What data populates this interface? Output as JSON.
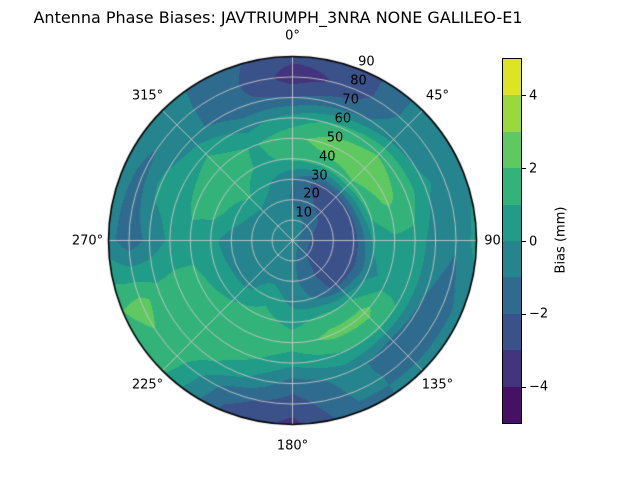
{
  "chart_data": {
    "type": "heatmap",
    "subtype": "polar_filled_contour",
    "title": "Antenna Phase Biases: JAVTRIUMPH_3NRA NONE GALILEO-E1",
    "angular_axis": {
      "zero_location": "N",
      "direction": "clockwise",
      "tick_labels": [
        {
          "label": "0°",
          "angle_deg": 0
        },
        {
          "label": "45°",
          "angle_deg": 45
        },
        {
          "label": "90",
          "angle_deg": 90
        },
        {
          "label": "135°",
          "angle_deg": 135
        },
        {
          "label": "180°",
          "angle_deg": 180
        },
        {
          "label": "225°",
          "angle_deg": 225
        },
        {
          "label": "270°",
          "angle_deg": 270
        },
        {
          "label": "315°",
          "angle_deg": 315
        }
      ]
    },
    "radial_axis": {
      "tick_labels": [
        "10",
        "20",
        "30",
        "40",
        "50",
        "60",
        "70",
        "80",
        "90"
      ],
      "tick_values": [
        10,
        20,
        30,
        40,
        50,
        60,
        70,
        80,
        90
      ],
      "max": 90,
      "label_angle_deg": 22.5
    },
    "colorbar": {
      "label": "Bias (mm)",
      "tick_labels": [
        "4",
        "2",
        "0",
        "−2",
        "−4"
      ],
      "tick_values": [
        4,
        2,
        0,
        -2,
        -4
      ],
      "vmin": -5,
      "vmax": 5,
      "level_step": 1,
      "band_colors_low_to_high": [
        "#461164",
        "#44347e",
        "#3b518a",
        "#2f6b8e",
        "#25848d",
        "#219c88",
        "#33b37a",
        "#5fc861",
        "#9bd83c",
        "#dde325"
      ]
    },
    "grid": {
      "color": "#c8c8c8",
      "angular_step_deg": 45,
      "radial_step": 10
    },
    "bias_grid_mm": {
      "radii_deg": [
        0,
        10,
        20,
        30,
        40,
        50,
        60,
        70,
        80,
        90
      ],
      "azimuths_deg": [
        0,
        22.5,
        45,
        67.5,
        90,
        112.5,
        135,
        157.5,
        180,
        202.5,
        225,
        247.5,
        270,
        292.5,
        315,
        337.5
      ],
      "values": [
        [
          -0.5,
          -0.5,
          -0.5,
          -0.5,
          -0.5,
          -0.5,
          -0.5,
          -0.5,
          -0.5,
          -0.5,
          -0.5,
          -0.5,
          -0.5,
          -0.5,
          -0.5,
          -0.5
        ],
        [
          -0.6,
          -0.9,
          -1.3,
          -1.9,
          -2.2,
          -2.3,
          -2.1,
          -1.4,
          -0.8,
          -0.5,
          -0.4,
          -0.5,
          -0.6,
          -0.5,
          -0.4,
          -0.4
        ],
        [
          -1.1,
          -1.8,
          -2.3,
          -2.6,
          -2.6,
          -2.7,
          -2.5,
          -1.6,
          -0.7,
          -0.3,
          -0.2,
          -0.4,
          -0.8,
          -0.5,
          -0.2,
          -0.6
        ],
        [
          -1.0,
          -2.3,
          -2.4,
          -2.4,
          -2.5,
          -2.6,
          -2.4,
          -1.1,
          -0.3,
          0.7,
          -0.3,
          -0.3,
          -0.5,
          0.5,
          1.1,
          0.1
        ],
        [
          1.2,
          1.5,
          1.9,
          1.4,
          0.3,
          -0.4,
          0.9,
          1.3,
          0.7,
          1.4,
          0.9,
          0.6,
          0.3,
          1.4,
          1.6,
          0.8
        ],
        [
          1.7,
          2.6,
          2.7,
          2.2,
          0.8,
          0.4,
          2.4,
          2.3,
          1.5,
          1.7,
          1.5,
          1.2,
          0.7,
          1.3,
          1.6,
          0.9
        ],
        [
          0.4,
          1.3,
          1.9,
          1.6,
          0.7,
          0.8,
          1.2,
          0.9,
          0.3,
          1.3,
          1.7,
          1.5,
          0.2,
          0.4,
          0.9,
          -0.4
        ],
        [
          -2.0,
          -1.4,
          -0.4,
          0.2,
          -0.6,
          -1.0,
          -1.6,
          -0.6,
          -1.5,
          0.4,
          1.8,
          1.5,
          -0.7,
          0.3,
          -0.6,
          -1.8
        ],
        [
          -3.6,
          -2.6,
          -0.6,
          -0.4,
          -0.9,
          -1.4,
          -1.2,
          -0.8,
          -2.5,
          -1.6,
          1.5,
          2.4,
          -1.7,
          -1.4,
          -0.6,
          -1.7
        ],
        [
          -2.7,
          -2.6,
          -0.6,
          -0.3,
          0.4,
          -0.6,
          -0.8,
          -1.2,
          -3.3,
          -2.2,
          1.2,
          2.0,
          -0.6,
          -0.4,
          -0.5,
          -1.7
        ]
      ]
    }
  }
}
